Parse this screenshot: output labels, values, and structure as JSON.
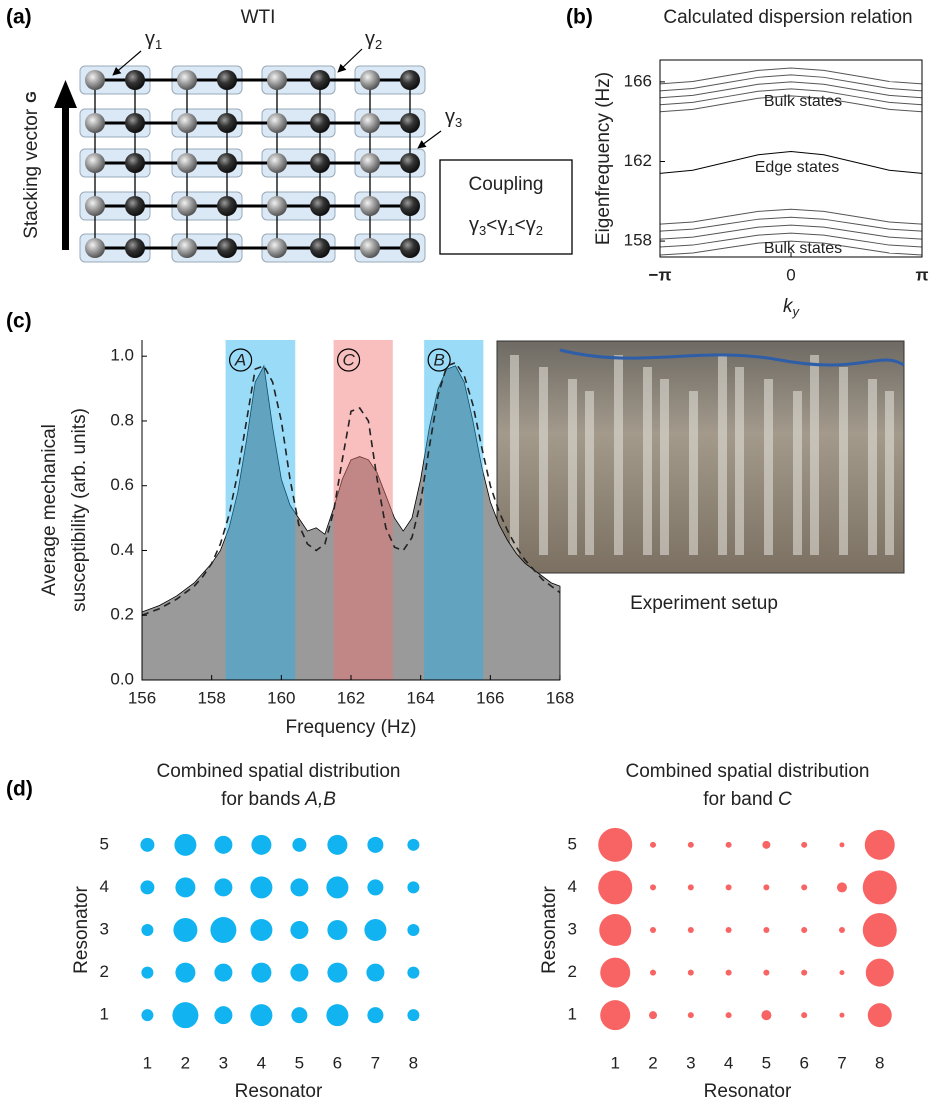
{
  "panel_labels": [
    "(a)",
    "(b)",
    "(c)",
    "(d)"
  ],
  "diagram": {
    "title": "WTI",
    "stacking_label": "Stacking vector",
    "stacking_symbol": "G",
    "couplings": [
      {
        "symbol": "γ",
        "sub": "1"
      },
      {
        "symbol": "γ",
        "sub": "2"
      },
      {
        "symbol": "γ",
        "sub": "3"
      }
    ],
    "legend_title": "Coupling",
    "inequality": [
      {
        "symbol": "γ",
        "sub": "3"
      },
      {
        "text": "<"
      },
      {
        "symbol": "γ",
        "sub": "1"
      },
      {
        "text": "<"
      },
      {
        "symbol": "γ",
        "sub": "2"
      }
    ]
  },
  "photo_caption": "Experiment setup",
  "chart_data": [
    {
      "type": "line",
      "title": "Calculated dispersion relation",
      "x": [
        -3.14159,
        -2.35619,
        -1.5708,
        -0.7854,
        0,
        0.7854,
        1.5708,
        2.35619,
        3.14159
      ],
      "series": [
        {
          "color": "#555",
          "values": [
            164.5,
            164.62,
            164.9,
            165.18,
            165.3,
            165.18,
            164.9,
            164.62,
            164.5
          ]
        },
        {
          "color": "#555",
          "values": [
            164.85,
            164.97,
            165.25,
            165.53,
            165.65,
            165.53,
            165.25,
            164.97,
            164.85
          ]
        },
        {
          "color": "#555",
          "values": [
            165.2,
            165.32,
            165.6,
            165.88,
            166.0,
            165.88,
            165.6,
            165.32,
            165.2
          ]
        },
        {
          "color": "#555",
          "values": [
            165.55,
            165.67,
            165.95,
            166.23,
            166.35,
            166.23,
            165.95,
            165.67,
            165.55
          ]
        },
        {
          "color": "#555",
          "values": [
            165.9,
            166.02,
            166.3,
            166.58,
            166.7,
            166.58,
            166.3,
            166.02,
            165.9
          ]
        },
        {
          "color": "#000",
          "values": [
            161.4,
            161.56,
            161.95,
            162.34,
            162.5,
            162.34,
            161.95,
            161.56,
            161.4
          ]
        },
        {
          "color": "#555",
          "values": [
            157.3,
            157.4,
            157.65,
            157.9,
            158.0,
            157.9,
            157.65,
            157.4,
            157.3
          ]
        },
        {
          "color": "#555",
          "values": [
            157.7,
            157.8,
            158.05,
            158.3,
            158.4,
            158.3,
            158.05,
            157.8,
            157.7
          ]
        },
        {
          "color": "#555",
          "values": [
            158.1,
            158.2,
            158.45,
            158.7,
            158.8,
            158.7,
            158.45,
            158.2,
            158.1
          ]
        },
        {
          "color": "#555",
          "values": [
            158.5,
            158.6,
            158.85,
            159.1,
            159.2,
            159.1,
            158.85,
            158.6,
            158.5
          ]
        },
        {
          "color": "#555",
          "values": [
            158.85,
            158.96,
            159.23,
            159.49,
            159.6,
            159.49,
            159.23,
            158.96,
            158.85
          ]
        }
      ],
      "xlim": [
        -3.14159,
        3.14159
      ],
      "xticks": [
        {
          "value": -3.14159,
          "label": "−π"
        },
        0,
        {
          "value": 3.14159,
          "label": "π"
        }
      ],
      "ylim": [
        157.2,
        167.1
      ],
      "yticks": [
        158,
        162,
        166
      ],
      "ylabel": "Eigenfrequency (Hz)",
      "xlabel": "k",
      "xlabel_sub": "y",
      "annotations": [
        "Bulk states",
        "Edge states",
        "Bulk states"
      ]
    },
    {
      "type": "area",
      "x": [
        156,
        156.25,
        156.5,
        156.75,
        157,
        157.25,
        157.5,
        157.75,
        158,
        158.25,
        158.5,
        158.75,
        159,
        159.25,
        159.5,
        159.75,
        160,
        160.25,
        160.5,
        160.75,
        161,
        161.25,
        161.5,
        161.75,
        162,
        162.25,
        162.5,
        162.75,
        163,
        163.25,
        163.5,
        163.75,
        164,
        164.25,
        164.5,
        164.75,
        165,
        165.25,
        165.5,
        165.75,
        166,
        166.25,
        166.5,
        166.75,
        167,
        167.25,
        167.5,
        167.75,
        168
      ],
      "series": [
        {
          "style": "filled",
          "color": "#9a9a9a",
          "values": [
            0.21,
            0.22,
            0.23,
            0.245,
            0.26,
            0.28,
            0.3,
            0.33,
            0.36,
            0.4,
            0.47,
            0.58,
            0.74,
            0.92,
            0.97,
            0.78,
            0.62,
            0.54,
            0.5,
            0.46,
            0.47,
            0.45,
            0.53,
            0.62,
            0.68,
            0.69,
            0.68,
            0.64,
            0.57,
            0.5,
            0.46,
            0.5,
            0.62,
            0.78,
            0.9,
            0.96,
            0.97,
            0.92,
            0.8,
            0.66,
            0.55,
            0.48,
            0.43,
            0.39,
            0.36,
            0.34,
            0.32,
            0.3,
            0.29
          ]
        },
        {
          "style": "dashed",
          "color": "#222",
          "values": [
            0.2,
            0.21,
            0.22,
            0.235,
            0.25,
            0.27,
            0.29,
            0.32,
            0.36,
            0.42,
            0.51,
            0.64,
            0.8,
            0.96,
            0.97,
            0.92,
            0.8,
            0.62,
            0.48,
            0.42,
            0.4,
            0.42,
            0.52,
            0.68,
            0.83,
            0.84,
            0.8,
            0.62,
            0.47,
            0.41,
            0.4,
            0.44,
            0.55,
            0.72,
            0.88,
            0.97,
            0.98,
            0.94,
            0.85,
            0.72,
            0.6,
            0.52,
            0.46,
            0.41,
            0.37,
            0.34,
            0.31,
            0.29,
            0.27
          ]
        }
      ],
      "bands": [
        {
          "label": "A",
          "range": [
            158.4,
            160.4
          ],
          "color": "#1fb0ee"
        },
        {
          "label": "C",
          "range": [
            161.5,
            163.2
          ],
          "color": "#f26f6f"
        },
        {
          "label": "B",
          "range": [
            164.1,
            165.8
          ],
          "color": "#1fb0ee"
        }
      ],
      "xlim": [
        156,
        168
      ],
      "xticks": [
        156,
        158,
        160,
        162,
        164,
        166,
        168
      ],
      "ylim": [
        0,
        1.05
      ],
      "yticks": [
        {
          "value": 0,
          "label": "0.0"
        },
        0.2,
        0.4,
        0.6,
        0.8,
        {
          "value": 1,
          "label": "1.0"
        }
      ],
      "xlabel": "Frequency (Hz)",
      "ylabel": [
        "Average mechanical",
        "susceptibility (arb. units)"
      ]
    },
    {
      "type": "scatter",
      "title": "Combined spatial distribution",
      "subtitle_prefix": "for bands",
      "subtitle_italic": "A,B",
      "x": [
        1,
        2,
        3,
        4,
        5,
        6,
        7,
        8,
        1,
        2,
        3,
        4,
        5,
        6,
        7,
        8,
        1,
        2,
        3,
        4,
        5,
        6,
        7,
        8,
        1,
        2,
        3,
        4,
        5,
        6,
        7,
        8,
        1,
        2,
        3,
        4,
        5,
        6,
        7,
        8
      ],
      "series": [
        {
          "color": "#11b3f0",
          "values": [
            5,
            5,
            5,
            5,
            5,
            5,
            5,
            5,
            4,
            4,
            4,
            4,
            4,
            4,
            4,
            4,
            3,
            3,
            3,
            3,
            3,
            3,
            3,
            3,
            2,
            2,
            2,
            2,
            2,
            2,
            2,
            2,
            1,
            1,
            1,
            1,
            1,
            1,
            1,
            1
          ],
          "sizes": [
            7,
            11,
            9,
            10,
            7,
            10,
            8,
            6,
            7,
            10,
            9,
            11,
            9,
            11,
            8,
            6,
            6,
            12,
            13,
            11,
            9,
            10,
            11,
            6,
            6,
            10,
            9,
            10,
            9,
            10,
            9,
            6,
            6,
            13,
            9,
            11,
            8,
            11,
            8,
            6
          ]
        }
      ],
      "xlim": [
        0.2,
        8.7
      ],
      "xticks": [
        1,
        2,
        3,
        4,
        5,
        6,
        7,
        8
      ],
      "ylim": [
        0.3,
        5.7
      ],
      "yticks": [
        1,
        2,
        3,
        4,
        5
      ],
      "xlabel": "Resonator",
      "ylabel": "Resonator"
    },
    {
      "type": "scatter",
      "title": "Combined spatial distribution",
      "subtitle_prefix": "for band",
      "subtitle_italic": "C",
      "x": [
        1,
        2,
        3,
        4,
        5,
        6,
        7,
        8,
        1,
        2,
        3,
        4,
        5,
        6,
        7,
        8,
        1,
        2,
        3,
        4,
        5,
        6,
        7,
        8,
        1,
        2,
        3,
        4,
        5,
        6,
        7,
        8,
        1,
        2,
        3,
        4,
        5,
        6,
        7,
        8
      ],
      "series": [
        {
          "color": "#f86464",
          "values": [
            5,
            5,
            5,
            5,
            5,
            5,
            5,
            5,
            4,
            4,
            4,
            4,
            4,
            4,
            4,
            4,
            3,
            3,
            3,
            3,
            3,
            3,
            3,
            3,
            2,
            2,
            2,
            2,
            2,
            2,
            2,
            2,
            1,
            1,
            1,
            1,
            1,
            1,
            1,
            1
          ],
          "sizes": [
            17,
            3,
            3,
            3,
            4,
            3,
            2.5,
            15,
            17,
            3,
            3,
            3,
            3,
            3,
            5,
            17,
            16,
            3,
            3,
            3,
            3,
            3,
            3,
            17,
            15,
            3,
            3,
            3,
            3,
            3,
            2.5,
            14,
            15,
            4,
            3,
            3,
            5,
            3,
            2.5,
            12
          ]
        }
      ],
      "xlim": [
        0.2,
        8.8
      ],
      "xticks": [
        1,
        2,
        3,
        4,
        5,
        6,
        7,
        8
      ],
      "ylim": [
        0.3,
        5.7
      ],
      "yticks": [
        1,
        2,
        3,
        4,
        5
      ],
      "xlabel": "Resonator",
      "ylabel": "Resonator"
    }
  ]
}
